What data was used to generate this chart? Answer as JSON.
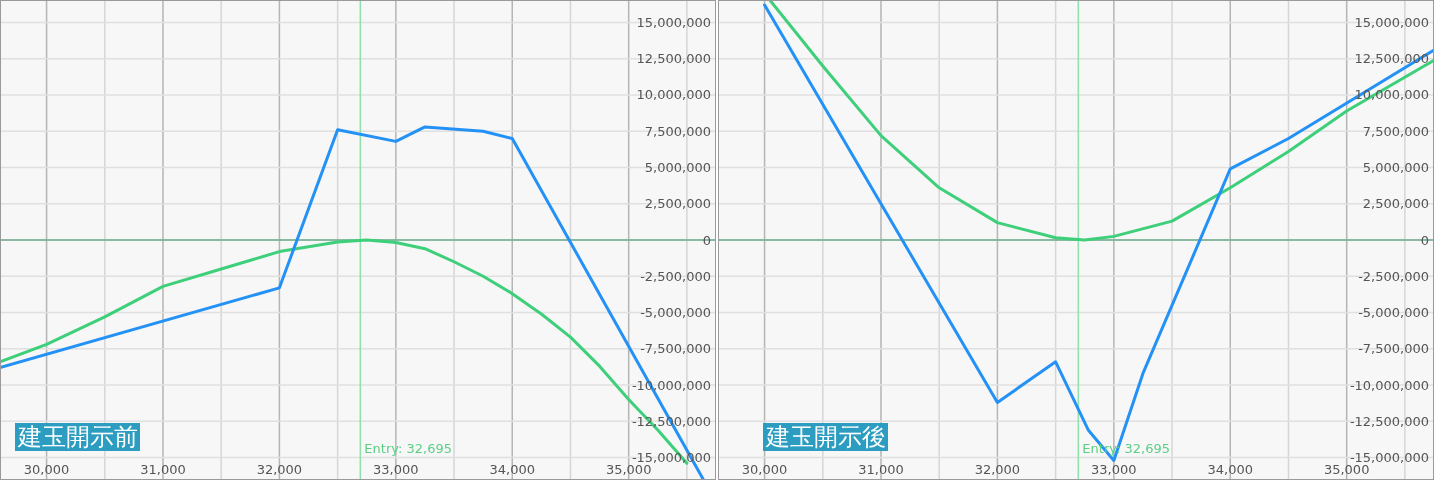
{
  "chart_data": [
    {
      "type": "line",
      "title": "建玉開示前",
      "xlim": [
        29600,
        35750
      ],
      "ylim": [
        -16550000,
        16550000
      ],
      "xticks": [
        {
          "value": 30000,
          "label": "30,000"
        },
        {
          "value": 30500,
          "label": null
        },
        {
          "value": 31000,
          "label": "31,000"
        },
        {
          "value": 31500,
          "label": null
        },
        {
          "value": 32000,
          "label": "32,000"
        },
        {
          "value": 32500,
          "label": null
        },
        {
          "value": 33000,
          "label": "33,000"
        },
        {
          "value": 33500,
          "label": null
        },
        {
          "value": 34000,
          "label": "34,000"
        },
        {
          "value": 34500,
          "label": null
        },
        {
          "value": 35000,
          "label": "35,000"
        },
        {
          "value": 35500,
          "label": null
        }
      ],
      "yticks": [
        {
          "value": -15000000,
          "label": "-15,000,000"
        },
        {
          "value": -12500000,
          "label": "-12,500,000"
        },
        {
          "value": -10000000,
          "label": "-10,000,000"
        },
        {
          "value": -7500000,
          "label": "-7,500,000"
        },
        {
          "value": -5000000,
          "label": "-5,000,000"
        },
        {
          "value": -2500000,
          "label": "-2,500,000"
        },
        0,
        {
          "value": 2500000,
          "label": "2,500,000"
        },
        {
          "value": 5000000,
          "label": "5,000,000"
        },
        {
          "value": 7500000,
          "label": "7,500,000"
        },
        {
          "value": 10000000,
          "label": "10,000,000"
        },
        {
          "value": 12500000,
          "label": "12,500,000"
        },
        {
          "value": 15000000,
          "label": "15,000,000"
        }
      ],
      "grid": true,
      "ref_lines": [
        {
          "axis": "y",
          "value": 0,
          "color": "#6aaa88"
        },
        {
          "axis": "x",
          "value": 32695,
          "label": "Entry: 32,695",
          "color": "#8fe0aa"
        }
      ],
      "series": [
        {
          "color": "#3ecf7a",
          "x": [
            29600,
            30000,
            30500,
            31000,
            31500,
            32000,
            32500,
            32750,
            33000,
            33250,
            33500,
            33750,
            34000,
            34250,
            34500,
            34750,
            35000,
            35250,
            35500
          ],
          "values": [
            -8400000,
            -7200000,
            -5300000,
            -3200000,
            -2000000,
            -800000,
            -140000,
            0,
            -170000,
            -600000,
            -1500000,
            -2500000,
            -3700000,
            -5100000,
            -6700000,
            -8700000,
            -11000000,
            -13100000,
            -15400000
          ]
        },
        {
          "color": "#2391f5",
          "x": [
            29600,
            32000,
            32500,
            33000,
            33250,
            33750,
            34000,
            35640
          ],
          "values": [
            -8800000,
            -3300000,
            7600000,
            6800000,
            7800000,
            7500000,
            7000000,
            -16500000
          ]
        }
      ]
    },
    {
      "type": "line",
      "title": "建玉開示後",
      "xlim": [
        29600,
        35750
      ],
      "ylim": [
        -16550000,
        16550000
      ],
      "xticks": [
        {
          "value": 30000,
          "label": "30,000"
        },
        {
          "value": 30500,
          "label": null
        },
        {
          "value": 31000,
          "label": "31,000"
        },
        {
          "value": 31500,
          "label": null
        },
        {
          "value": 32000,
          "label": "32,000"
        },
        {
          "value": 32500,
          "label": null
        },
        {
          "value": 33000,
          "label": "33,000"
        },
        {
          "value": 33500,
          "label": null
        },
        {
          "value": 34000,
          "label": "34,000"
        },
        {
          "value": 34500,
          "label": null
        },
        {
          "value": 35000,
          "label": "35,000"
        },
        {
          "value": 35500,
          "label": null
        }
      ],
      "yticks": [
        {
          "value": -15000000,
          "label": "-15,000,000"
        },
        {
          "value": -12500000,
          "label": "-12,500,000"
        },
        {
          "value": -10000000,
          "label": "-10,000,000"
        },
        {
          "value": -7500000,
          "label": "-7,500,000"
        },
        {
          "value": -5000000,
          "label": "-5,000,000"
        },
        {
          "value": -2500000,
          "label": "-2,500,000"
        },
        0,
        {
          "value": 2500000,
          "label": "2,500,000"
        },
        {
          "value": 5000000,
          "label": "5,000,000"
        },
        {
          "value": 7500000,
          "label": "7,500,000"
        },
        {
          "value": 10000000,
          "label": "10,000,000"
        },
        {
          "value": 12500000,
          "label": "12,500,000"
        },
        {
          "value": 15000000,
          "label": "15,000,000"
        }
      ],
      "grid": true,
      "ref_lines": [
        {
          "axis": "y",
          "value": 0,
          "color": "#6aaa88"
        },
        {
          "axis": "x",
          "value": 32695,
          "label": "Entry: 32,695",
          "color": "#8fe0aa"
        }
      ],
      "series": [
        {
          "color": "#3ecf7a",
          "x": [
            30050,
            30500,
            31000,
            31500,
            32000,
            32500,
            32750,
            33000,
            33500,
            34000,
            34500,
            35000,
            35750
          ],
          "values": [
            16500000,
            12000000,
            7200000,
            3600000,
            1200000,
            150000,
            0,
            250000,
            1300000,
            3600000,
            6100000,
            8900000,
            12400000
          ]
        },
        {
          "color": "#2391f5",
          "x": [
            30000,
            32000,
            32500,
            32780,
            33000,
            33250,
            34000,
            34500,
            35750
          ],
          "values": [
            16200000,
            -11200000,
            -8400000,
            -13100000,
            -15200000,
            -9200000,
            4900000,
            7000000,
            13100000
          ]
        }
      ]
    }
  ]
}
